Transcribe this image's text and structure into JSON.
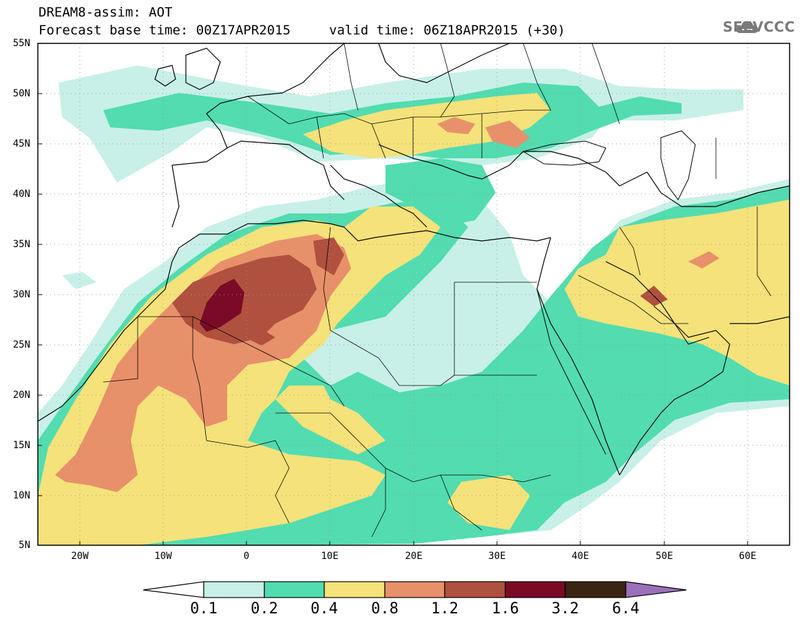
{
  "header": {
    "title": "DREAM8-assim: AOT",
    "base_time": "Forecast base time: 00Z17APR2015",
    "valid_time": "valid time: 06Z18APR2015 (+30)"
  },
  "logo": {
    "text": "SEEVCCC",
    "icon": "cloud-icon",
    "color": "#7a7a7a"
  },
  "map": {
    "variable": "AOT",
    "lat_labels": [
      "55N",
      "50N",
      "45N",
      "40N",
      "35N",
      "30N",
      "25N",
      "20N",
      "15N",
      "10N",
      "5N"
    ],
    "lon_labels": [
      "20W",
      "10W",
      "0",
      "10E",
      "20E",
      "30E",
      "40E",
      "50E",
      "60E"
    ],
    "lat_range": [
      5,
      55
    ],
    "lon_range": [
      -25,
      65
    ],
    "grid": "dotted"
  },
  "colorbar": {
    "thresholds": [
      "0.1",
      "0.2",
      "0.4",
      "0.8",
      "1.2",
      "1.6",
      "3.2",
      "6.4"
    ],
    "colors": [
      "#ffffff",
      "#c8f0e8",
      "#52dcb0",
      "#f5e27a",
      "#e8906a",
      "#b0503e",
      "#7a0a26",
      "#3b2412",
      "#9a70b8"
    ]
  }
}
